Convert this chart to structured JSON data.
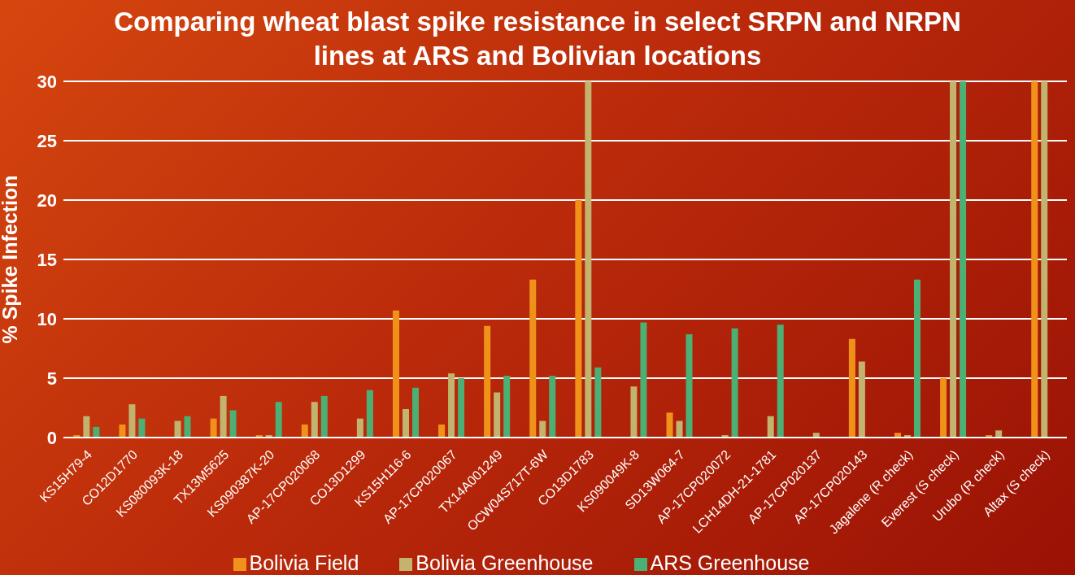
{
  "chart_data": {
    "type": "bar",
    "title": "Comparing wheat blast spike resistance in select SRPN and NRPN lines at ARS and Bolivian locations",
    "ylabel": "% Spike Infection",
    "categories": [
      "KS15H79-4",
      "CO12D1770",
      "KS080093K-18",
      "TX13M5625",
      "KS090387K-20",
      "AP-17CP020068",
      "CO13D1299",
      "KS15H116-6",
      "AP-17CP020067",
      "TX14A001249",
      "OCW04S717T-6W",
      "CO13D1783",
      "KS090049K-8",
      "SD13W064-7",
      "AP-17CP020072",
      "LCH14DH-21-1781",
      "AP-17CP020137",
      "AP-17CP020143",
      "Jagalene (R check)",
      "Everest (S check)",
      "Urubo (R check)",
      "Altax (S check)"
    ],
    "series": [
      {
        "name": "Bolivia Field",
        "color": "#f0921a",
        "values": [
          0.2,
          1.1,
          0,
          1.6,
          0.2,
          1.1,
          0,
          10.7,
          1.1,
          9.4,
          13.3,
          20,
          0,
          2.1,
          0,
          0,
          0,
          8.3,
          0.4,
          5,
          0.2,
          30
        ]
      },
      {
        "name": "Bolivia Greenhouse",
        "color": "#c2b46e",
        "values": [
          1.8,
          2.8,
          1.4,
          3.5,
          0.2,
          3,
          1.6,
          2.4,
          5.4,
          3.8,
          1.4,
          30,
          4.3,
          1.4,
          0.2,
          1.8,
          0.4,
          6.4,
          0.2,
          30,
          0.6,
          30
        ]
      },
      {
        "name": "ARS Greenhouse",
        "color": "#4caf74",
        "values": [
          0.9,
          1.6,
          1.8,
          2.3,
          3,
          3.5,
          4,
          4.2,
          5,
          5.2,
          5.2,
          5.9,
          9.7,
          8.7,
          9.2,
          9.5,
          0,
          0,
          13.3,
          30,
          0,
          0
        ]
      }
    ],
    "ylim": [
      0,
      30
    ],
    "yticks": [
      0,
      5,
      10,
      15,
      20,
      25,
      30
    ],
    "grid": "y",
    "legend": "bottom"
  }
}
